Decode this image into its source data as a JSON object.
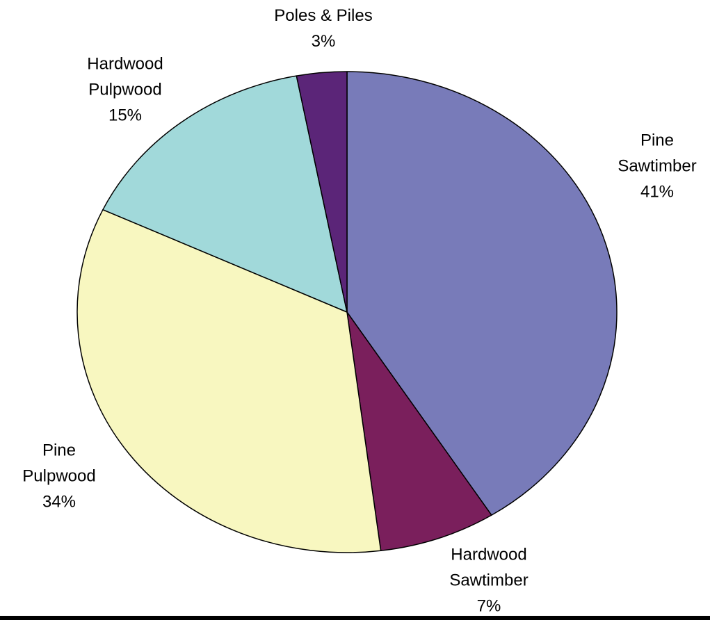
{
  "chart_data": {
    "type": "pie",
    "title": "",
    "start_angle_deg": 0,
    "direction": "clockwise",
    "slices": [
      {
        "label_lines": [
          "Pine",
          "Sawtimber"
        ],
        "value": 41,
        "percent_label": "41%",
        "color": "#787BB9"
      },
      {
        "label_lines": [
          "Hardwood",
          "Sawtimber"
        ],
        "value": 7,
        "percent_label": "7%",
        "color": "#7A1F5C"
      },
      {
        "label_lines": [
          "Pine",
          "Pulpwood"
        ],
        "value": 34,
        "percent_label": "34%",
        "color": "#F8F7C0"
      },
      {
        "label_lines": [
          "Hardwood",
          "Pulpwood"
        ],
        "value": 15,
        "percent_label": "15%",
        "color": "#A1D9DA"
      },
      {
        "label_lines": [
          "Poles & Piles"
        ],
        "value": 3,
        "percent_label": "3%",
        "color": "#5B2578"
      }
    ]
  }
}
